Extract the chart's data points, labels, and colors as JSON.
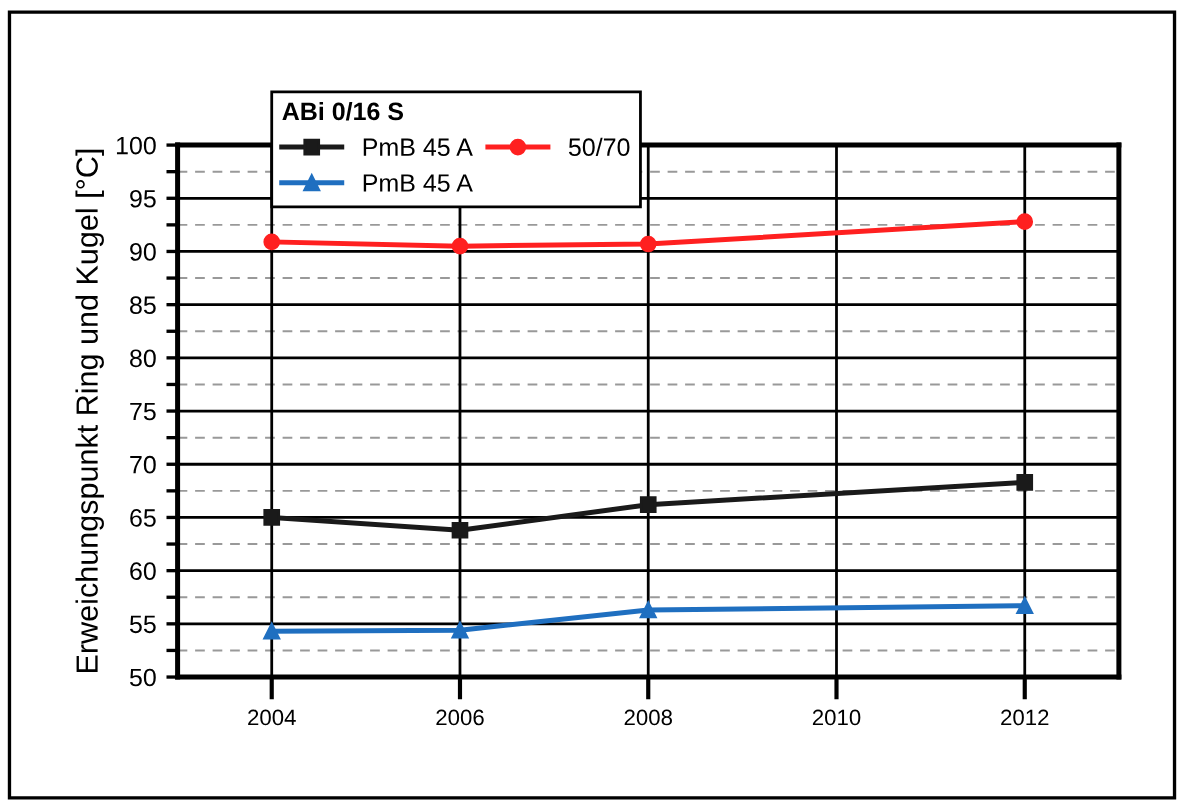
{
  "chart_data": {
    "type": "line",
    "ylabel": "Erweichungspunkt Ring und Kugel [°C]",
    "legend_title": "ABi 0/16 S",
    "x": [
      2004,
      2006,
      2008,
      2012
    ],
    "series": [
      {
        "name": "PmB 45 A",
        "color": "#1a1a1a",
        "marker": "square",
        "values": [
          65.0,
          63.8,
          66.2,
          68.3
        ]
      },
      {
        "name": "50/70",
        "color": "#ff2020",
        "marker": "circle",
        "values": [
          90.9,
          90.5,
          90.7,
          92.8
        ]
      },
      {
        "name": "PmB 45 A",
        "color": "#1f6fc0",
        "marker": "triangle",
        "values": [
          54.3,
          54.4,
          56.3,
          56.7
        ]
      }
    ],
    "xlim": [
      2003,
      2013
    ],
    "xticks": [
      2004,
      2006,
      2008,
      2010,
      2012
    ],
    "ylim": [
      50,
      100
    ],
    "yticks": [
      50,
      {
        "value": 52.5,
        "label": null
      },
      55,
      {
        "value": 57.5,
        "label": null
      },
      60,
      {
        "value": 62.5,
        "label": null
      },
      65,
      {
        "value": 67.5,
        "label": null
      },
      70,
      {
        "value": 72.5,
        "label": null
      },
      75,
      {
        "value": 77.5,
        "label": null
      },
      80,
      {
        "value": 82.5,
        "label": null
      },
      85,
      {
        "value": 87.5,
        "label": null
      },
      90,
      {
        "value": 92.5,
        "label": null
      },
      95,
      {
        "value": 97.5,
        "label": null
      },
      100
    ],
    "grid": true,
    "legend": "top left",
    "line_style": "solid"
  }
}
